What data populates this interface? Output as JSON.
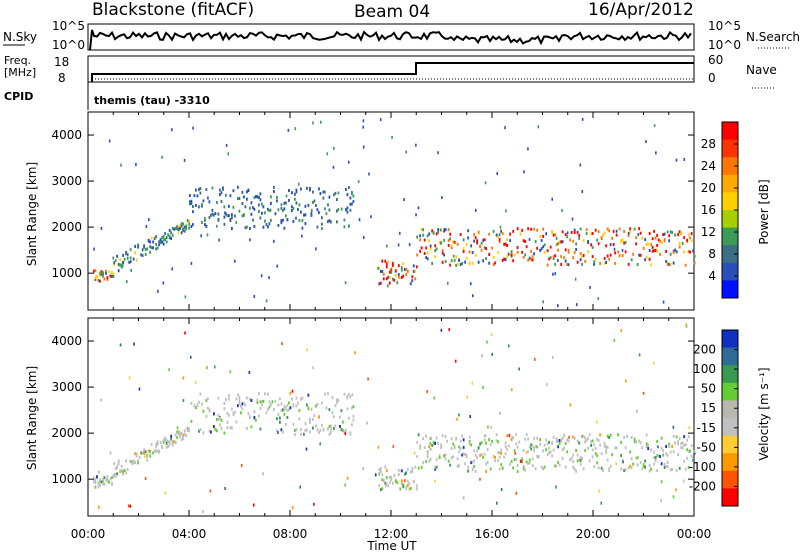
{
  "header": {
    "station": "Blackstone (fitACF)",
    "beam": "Beam 04",
    "date": "16/Apr/2012"
  },
  "noise_panel": {
    "left_label": "N.Sky",
    "right_label": "N.Search",
    "left_ticks": [
      "10^5",
      "10^0"
    ],
    "right_ticks": [
      "10^5",
      "10^0"
    ]
  },
  "freq_panel": {
    "label_line1": "Freq.",
    "label_line2": "[MHz]",
    "left_ticks": [
      "18",
      "8"
    ],
    "right_label": "Nave",
    "right_ticks": [
      "60",
      "0"
    ],
    "cpid_label": "CPID",
    "cpid_text": "themis (tau) -3310"
  },
  "colorbar_power": {
    "label": "Power [dB]",
    "ticks": [
      "28",
      "24",
      "20",
      "16",
      "12",
      "8",
      "4"
    ],
    "colors": [
      "#ff0000",
      "#ff3300",
      "#ff7700",
      "#ffaa00",
      "#ffd000",
      "#a8d000",
      "#3d9b56",
      "#3c6e86",
      "#2850b8",
      "#0010ff"
    ]
  },
  "colorbar_velocity": {
    "label": "Velocity [m s⁻¹]",
    "ticks": [
      "200",
      "100",
      "50",
      "15",
      "-15",
      "-50",
      "-100",
      "-200"
    ],
    "colors": [
      "#1030c0",
      "#2e6c98",
      "#3a9a50",
      "#66cc33",
      "#b8b8b0",
      "#c0c0c0",
      "#ffcc33",
      "#ff9900",
      "#ff5500",
      "#ff0000"
    ]
  },
  "chart_data": [
    {
      "type": "heatmap",
      "name": "power",
      "ylabel": "Slant Range [km]",
      "yticks": [
        "1000",
        "2000",
        "3000",
        "4000"
      ],
      "ylim": [
        200,
        4500
      ],
      "xlim": [
        0,
        24
      ],
      "note_ref": "colorbar_power",
      "scatter_bands": [
        {
          "t_start": 0.2,
          "t_end": 1.0,
          "range": [
            850,
            1100
          ],
          "level": "high"
        },
        {
          "t_start": 1.0,
          "t_end": 4.0,
          "range": [
            1000,
            2200
          ],
          "level": "mid"
        },
        {
          "t_start": 4.0,
          "t_end": 10.5,
          "range": [
            2000,
            2900
          ],
          "level": "low"
        },
        {
          "t_start": 11.5,
          "t_end": 13.0,
          "range": [
            800,
            1300
          ],
          "level": "high"
        },
        {
          "t_start": 13.0,
          "t_end": 24.0,
          "range": [
            1200,
            2000
          ],
          "level": "high"
        }
      ]
    },
    {
      "type": "heatmap",
      "name": "velocity",
      "ylabel": "Slant Range [km]",
      "yticks": [
        "1000",
        "2000",
        "3000",
        "4000"
      ],
      "ylim": [
        200,
        4500
      ],
      "xlim": [
        0,
        24
      ],
      "note_ref": "colorbar_velocity"
    }
  ],
  "x_axis": {
    "ticks": [
      "00:00",
      "04:00",
      "08:00",
      "12:00",
      "16:00",
      "20:00",
      "00:00"
    ],
    "label": "Time UT"
  }
}
